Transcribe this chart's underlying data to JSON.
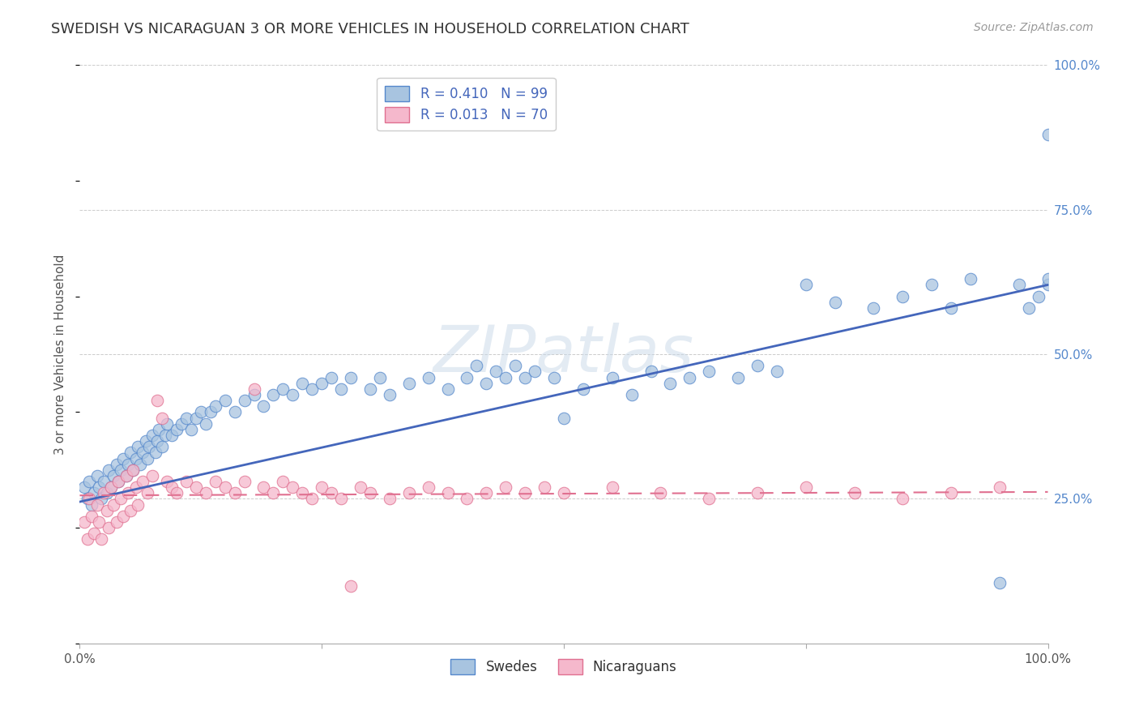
{
  "title": "SWEDISH VS NICARAGUAN 3 OR MORE VEHICLES IN HOUSEHOLD CORRELATION CHART",
  "source": "Source: ZipAtlas.com",
  "ylabel": "3 or more Vehicles in Household",
  "watermark": "ZIPatlas",
  "xlim": [
    0,
    1
  ],
  "ylim": [
    0,
    1
  ],
  "x_ticks": [
    0,
    0.25,
    0.5,
    0.75,
    1.0
  ],
  "y_ticks": [
    0,
    0.25,
    0.5,
    0.75,
    1.0
  ],
  "x_tick_labels": [
    "0.0%",
    "",
    "",
    "",
    "100.0%"
  ],
  "y_tick_labels_right": [
    "",
    "25.0%",
    "50.0%",
    "75.0%",
    "100.0%"
  ],
  "swedes_color": "#a8c4e0",
  "swedes_edge_color": "#5588cc",
  "nicaraguans_color": "#f5b8cc",
  "nicaraguans_edge_color": "#e07090",
  "swedes_line_color": "#4466bb",
  "nicaraguans_line_color": "#e07090",
  "legend_R_swedes": "R = 0.410",
  "legend_N_swedes": "N = 99",
  "legend_R_nicaraguans": "R = 0.013",
  "legend_N_nicaraguans": "N = 70",
  "swedes_x": [
    0.005,
    0.008,
    0.01,
    0.012,
    0.015,
    0.018,
    0.02,
    0.022,
    0.025,
    0.028,
    0.03,
    0.032,
    0.035,
    0.038,
    0.04,
    0.042,
    0.045,
    0.048,
    0.05,
    0.052,
    0.055,
    0.058,
    0.06,
    0.062,
    0.065,
    0.068,
    0.07,
    0.072,
    0.075,
    0.078,
    0.08,
    0.082,
    0.085,
    0.088,
    0.09,
    0.095,
    0.1,
    0.105,
    0.11,
    0.115,
    0.12,
    0.125,
    0.13,
    0.135,
    0.14,
    0.15,
    0.16,
    0.17,
    0.18,
    0.19,
    0.2,
    0.21,
    0.22,
    0.23,
    0.24,
    0.25,
    0.26,
    0.27,
    0.28,
    0.3,
    0.31,
    0.32,
    0.34,
    0.36,
    0.38,
    0.4,
    0.41,
    0.42,
    0.43,
    0.44,
    0.45,
    0.46,
    0.47,
    0.49,
    0.5,
    0.52,
    0.55,
    0.57,
    0.59,
    0.61,
    0.63,
    0.65,
    0.68,
    0.7,
    0.72,
    0.75,
    0.78,
    0.82,
    0.85,
    0.88,
    0.9,
    0.92,
    0.95,
    0.97,
    0.98,
    0.99,
    1.0,
    1.0,
    1.0
  ],
  "swedes_y": [
    0.27,
    0.25,
    0.28,
    0.24,
    0.26,
    0.29,
    0.27,
    0.25,
    0.28,
    0.26,
    0.3,
    0.27,
    0.29,
    0.31,
    0.28,
    0.3,
    0.32,
    0.29,
    0.31,
    0.33,
    0.3,
    0.32,
    0.34,
    0.31,
    0.33,
    0.35,
    0.32,
    0.34,
    0.36,
    0.33,
    0.35,
    0.37,
    0.34,
    0.36,
    0.38,
    0.36,
    0.37,
    0.38,
    0.39,
    0.37,
    0.39,
    0.4,
    0.38,
    0.4,
    0.41,
    0.42,
    0.4,
    0.42,
    0.43,
    0.41,
    0.43,
    0.44,
    0.43,
    0.45,
    0.44,
    0.45,
    0.46,
    0.44,
    0.46,
    0.44,
    0.46,
    0.43,
    0.45,
    0.46,
    0.44,
    0.46,
    0.48,
    0.45,
    0.47,
    0.46,
    0.48,
    0.46,
    0.47,
    0.46,
    0.39,
    0.44,
    0.46,
    0.43,
    0.47,
    0.45,
    0.46,
    0.47,
    0.46,
    0.48,
    0.47,
    0.62,
    0.59,
    0.58,
    0.6,
    0.62,
    0.58,
    0.63,
    0.105,
    0.62,
    0.58,
    0.6,
    0.62,
    0.88,
    0.63
  ],
  "nicaraguans_x": [
    0.005,
    0.008,
    0.01,
    0.012,
    0.015,
    0.018,
    0.02,
    0.022,
    0.025,
    0.028,
    0.03,
    0.032,
    0.035,
    0.038,
    0.04,
    0.042,
    0.045,
    0.048,
    0.05,
    0.052,
    0.055,
    0.058,
    0.06,
    0.065,
    0.07,
    0.075,
    0.08,
    0.085,
    0.09,
    0.095,
    0.1,
    0.11,
    0.12,
    0.13,
    0.14,
    0.15,
    0.16,
    0.17,
    0.18,
    0.19,
    0.2,
    0.21,
    0.22,
    0.23,
    0.24,
    0.25,
    0.26,
    0.27,
    0.28,
    0.29,
    0.3,
    0.32,
    0.34,
    0.36,
    0.38,
    0.4,
    0.42,
    0.44,
    0.46,
    0.48,
    0.5,
    0.55,
    0.6,
    0.65,
    0.7,
    0.75,
    0.8,
    0.85,
    0.9,
    0.95
  ],
  "nicaraguans_y": [
    0.21,
    0.18,
    0.25,
    0.22,
    0.19,
    0.24,
    0.21,
    0.18,
    0.26,
    0.23,
    0.2,
    0.27,
    0.24,
    0.21,
    0.28,
    0.25,
    0.22,
    0.29,
    0.26,
    0.23,
    0.3,
    0.27,
    0.24,
    0.28,
    0.26,
    0.29,
    0.42,
    0.39,
    0.28,
    0.27,
    0.26,
    0.28,
    0.27,
    0.26,
    0.28,
    0.27,
    0.26,
    0.28,
    0.44,
    0.27,
    0.26,
    0.28,
    0.27,
    0.26,
    0.25,
    0.27,
    0.26,
    0.25,
    0.1,
    0.27,
    0.26,
    0.25,
    0.26,
    0.27,
    0.26,
    0.25,
    0.26,
    0.27,
    0.26,
    0.27,
    0.26,
    0.27,
    0.26,
    0.25,
    0.26,
    0.27,
    0.26,
    0.25,
    0.26,
    0.27
  ],
  "swedes_line_x": [
    0.0,
    1.0
  ],
  "swedes_line_y": [
    0.245,
    0.62
  ],
  "nicaraguans_line_x": [
    0.0,
    1.0
  ],
  "nicaraguans_line_y": [
    0.256,
    0.262
  ],
  "grid_color": "#cccccc",
  "background_color": "#ffffff",
  "title_fontsize": 13,
  "source_fontsize": 10,
  "ylabel_fontsize": 11,
  "tick_fontsize": 11,
  "legend_fontsize": 12,
  "watermark_fontsize": 58,
  "watermark_color": "#c8d8e8",
  "watermark_alpha": 0.5
}
